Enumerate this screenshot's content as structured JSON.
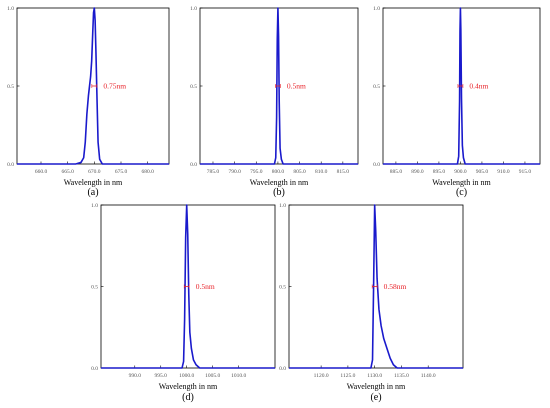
{
  "figure": {
    "colors": {
      "line": "#1a1acc",
      "annotation": "#e8232a",
      "axes": "#000000"
    }
  },
  "chart_data": [
    {
      "type": "line",
      "panel_label": "(a)",
      "xlabel": "Wavelength in nm",
      "ylabel": "",
      "xlim": [
        655.5,
        684.0
      ],
      "ylim": [
        0,
        1.0
      ],
      "xticks": [
        660.0,
        665.0,
        670.0,
        675.0,
        680.0
      ],
      "xtick_labels": [
        "660.0",
        "665.0",
        "670.0",
        "675.0",
        "680.0"
      ],
      "yticks": [
        0,
        0.5,
        1.0
      ],
      "ytick_labels": [
        "0.0",
        "0.5",
        "1.0"
      ],
      "annotation": {
        "text": "0.75nm",
        "x": 670.0,
        "y": 0.5
      },
      "series": [
        {
          "x": [
            655.5,
            666.5,
            667.5,
            668.0,
            668.3,
            668.6,
            668.9,
            669.1,
            669.3,
            669.5,
            669.7,
            669.85,
            670.0,
            670.15,
            670.3,
            670.5,
            670.7,
            671.0,
            671.5,
            684.0
          ],
          "y": [
            0,
            0,
            0.01,
            0.04,
            0.14,
            0.32,
            0.44,
            0.5,
            0.56,
            0.66,
            0.84,
            0.97,
            1.0,
            0.92,
            0.72,
            0.42,
            0.14,
            0.03,
            0,
            0
          ]
        }
      ]
    },
    {
      "type": "line",
      "panel_label": "(b)",
      "xlabel": "Wavelength in nm",
      "ylabel": "",
      "xlim": [
        782.0,
        818.5
      ],
      "ylim": [
        0,
        1.0
      ],
      "xticks": [
        785.0,
        790.0,
        795.0,
        800.0,
        805.0,
        810.0,
        815.0
      ],
      "xtick_labels": [
        "785.0",
        "790.0",
        "795.0",
        "800.0",
        "805.0",
        "810.0",
        "815.0"
      ],
      "yticks": [
        0,
        0.5,
        1.0
      ],
      "ytick_labels": [
        "0.0",
        "0.5",
        "1.0"
      ],
      "annotation": {
        "text": "0.5nm",
        "x": 800.0,
        "y": 0.5
      },
      "series": [
        {
          "x": [
            782.0,
            799.2,
            799.5,
            799.7,
            799.85,
            800.0,
            800.15,
            800.3,
            800.5,
            800.8,
            801.2,
            818.5
          ],
          "y": [
            0,
            0,
            0.04,
            0.3,
            0.8,
            1.0,
            0.82,
            0.4,
            0.1,
            0.03,
            0,
            0
          ]
        }
      ]
    },
    {
      "type": "line",
      "panel_label": "(c)",
      "xlabel": "Wavelength in nm",
      "ylabel": "",
      "xlim": [
        882.0,
        918.5
      ],
      "ylim": [
        0,
        1.0
      ],
      "xticks": [
        885.0,
        890.0,
        895.0,
        900.0,
        905.0,
        910.0,
        915.0
      ],
      "xtick_labels": [
        "885.0",
        "890.0",
        "895.0",
        "900.0",
        "905.0",
        "910.0",
        "915.0"
      ],
      "yticks": [
        0,
        0.5,
        1.0
      ],
      "ytick_labels": [
        "0.0",
        "0.5",
        "1.0"
      ],
      "annotation": {
        "text": "0.4nm",
        "x": 900.0,
        "y": 0.5
      },
      "series": [
        {
          "x": [
            882.0,
            899.3,
            899.6,
            899.8,
            899.9,
            900.0,
            900.1,
            900.25,
            900.45,
            900.7,
            901.1,
            918.5
          ],
          "y": [
            0,
            0,
            0.05,
            0.4,
            0.85,
            1.0,
            0.86,
            0.42,
            0.12,
            0.04,
            0,
            0
          ]
        }
      ]
    },
    {
      "type": "line",
      "panel_label": "(d)",
      "xlabel": "Wavelength in nm",
      "ylabel": "",
      "xlim": [
        983.5,
        1017.0
      ],
      "ylim": [
        0,
        1.0
      ],
      "xticks": [
        990.0,
        995.0,
        1000.0,
        1005.0,
        1010.0
      ],
      "xtick_labels": [
        "990.0",
        "995.0",
        "1000.0",
        "1005.0",
        "1010.0"
      ],
      "yticks": [
        0,
        0.5,
        1.0
      ],
      "ytick_labels": [
        "0.0",
        "0.5",
        "1.0"
      ],
      "annotation": {
        "text": "0.5nm",
        "x": 1000.0,
        "y": 0.5
      },
      "series": [
        {
          "x": [
            983.5,
            999.1,
            999.4,
            999.6,
            999.8,
            1000.0,
            1000.2,
            1000.4,
            1000.6,
            1000.9,
            1001.3,
            1001.8,
            1002.5,
            1017.0
          ],
          "y": [
            0,
            0,
            0.04,
            0.3,
            0.8,
            1.0,
            0.82,
            0.45,
            0.22,
            0.12,
            0.05,
            0.02,
            0,
            0
          ]
        }
      ]
    },
    {
      "type": "line",
      "panel_label": "(e)",
      "xlabel": "Wavelength in nm",
      "ylabel": "",
      "xlim": [
        1114.0,
        1146.5
      ],
      "ylim": [
        0,
        1.0
      ],
      "xticks": [
        1120.0,
        1125.0,
        1130.0,
        1135.0,
        1140.0
      ],
      "xtick_labels": [
        "1120.0",
        "1125.0",
        "1130.0",
        "1135.0",
        "1140.0"
      ],
      "yticks": [
        0,
        0.5,
        1.0
      ],
      "ytick_labels": [
        "0.0",
        "0.5",
        "1.0"
      ],
      "annotation": {
        "text": "0.58nm",
        "x": 1130.0,
        "y": 0.5
      },
      "series": [
        {
          "x": [
            1114.0,
            1129.3,
            1129.6,
            1129.8,
            1130.0,
            1130.2,
            1130.45,
            1130.8,
            1131.2,
            1131.7,
            1132.3,
            1132.9,
            1133.5,
            1134.2,
            1146.5
          ],
          "y": [
            0,
            0,
            0.05,
            0.5,
            1.0,
            0.84,
            0.55,
            0.36,
            0.26,
            0.18,
            0.12,
            0.06,
            0.02,
            0,
            0
          ]
        }
      ]
    }
  ]
}
